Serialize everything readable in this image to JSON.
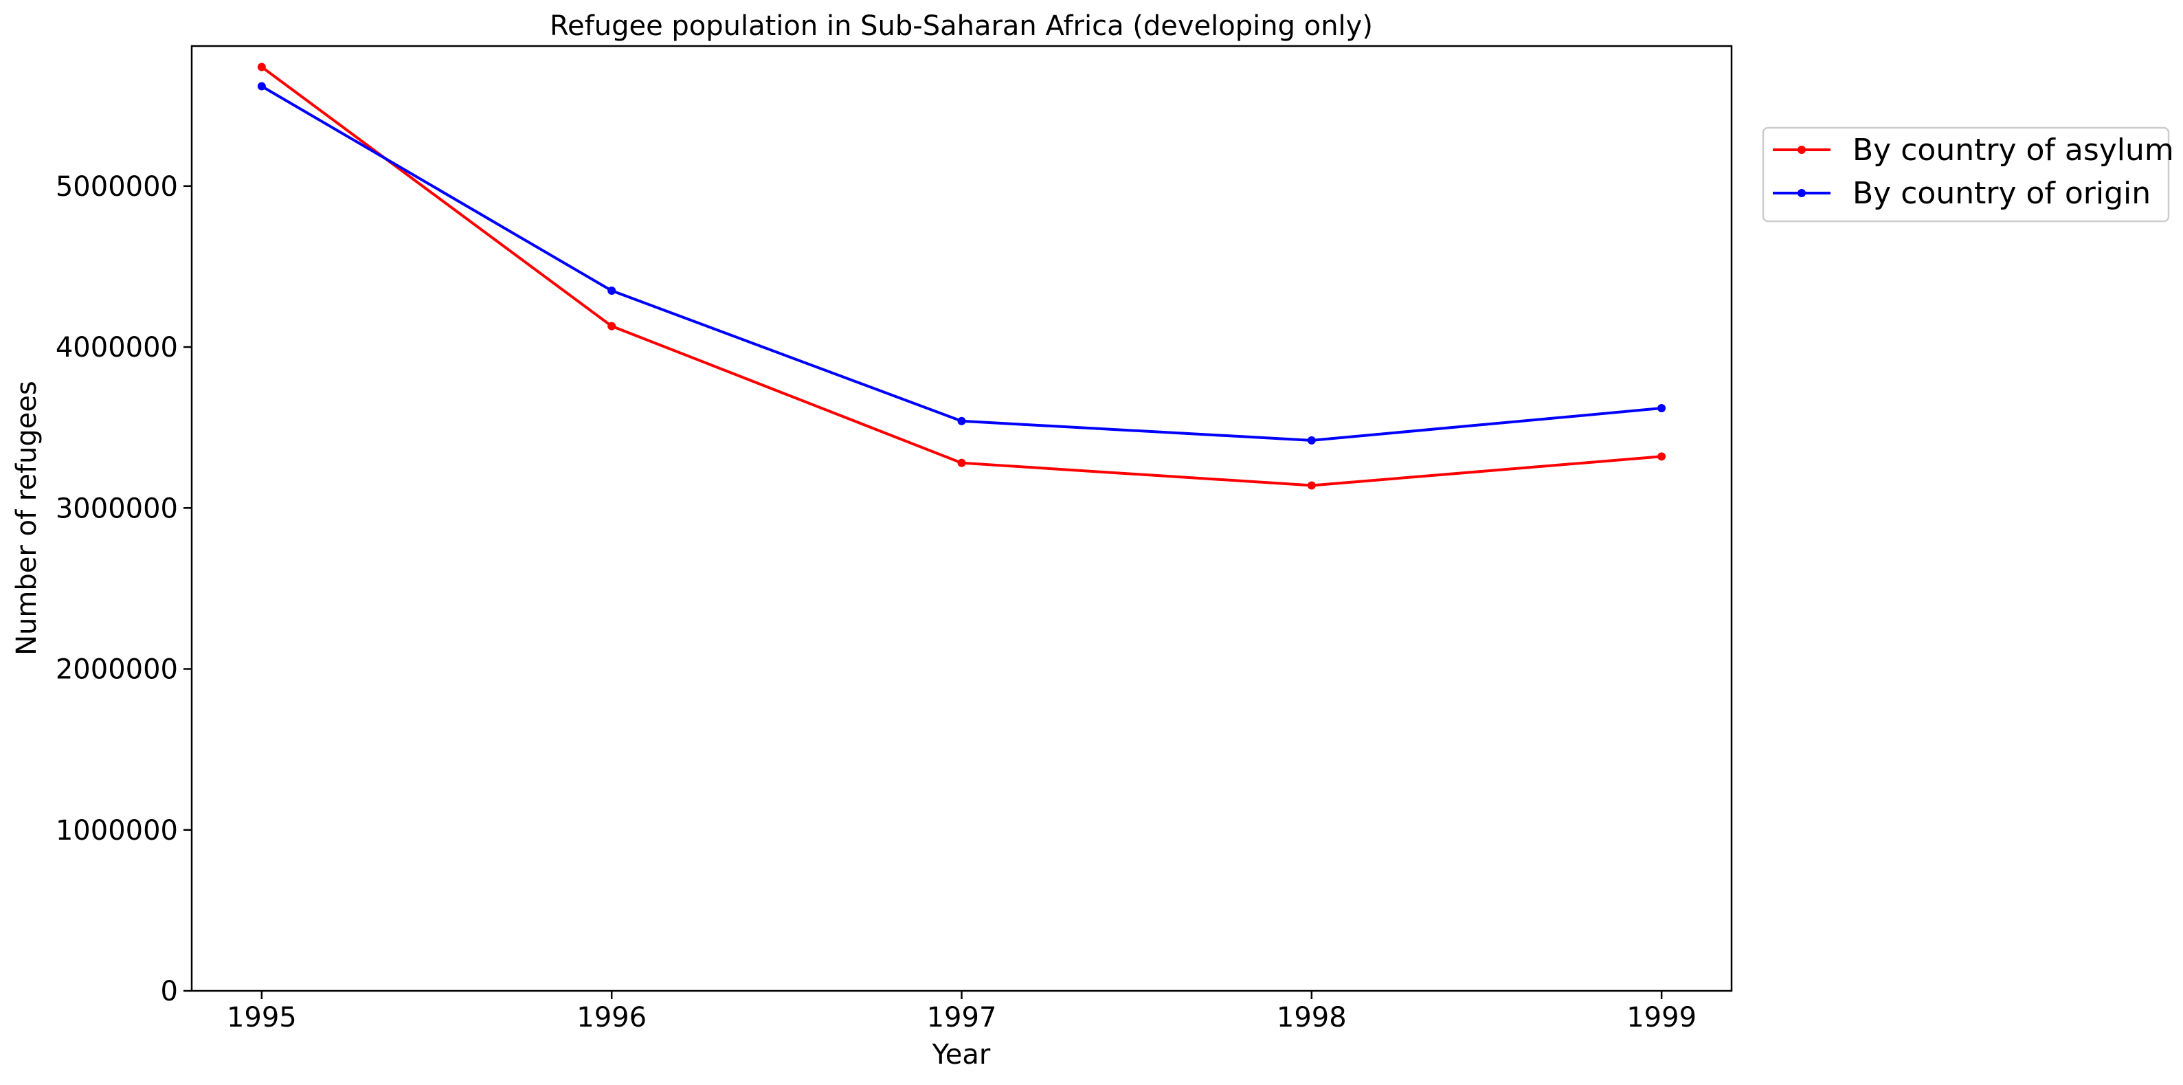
{
  "chart_data": {
    "type": "line",
    "title": "Refugee population in Sub-Saharan Africa (developing only)",
    "xlabel": "Year",
    "ylabel": "Number of refugees",
    "x": [
      1995,
      1996,
      1997,
      1998,
      1999
    ],
    "x_tick_labels": [
      "1995",
      "1996",
      "1997",
      "1998",
      "1999"
    ],
    "xlim": [
      1994.8,
      1999.2
    ],
    "ylim": [
      0,
      5870000
    ],
    "y_ticks": [
      0,
      1000000,
      2000000,
      3000000,
      4000000,
      5000000
    ],
    "y_tick_labels": [
      "0",
      "1000000",
      "2000000",
      "3000000",
      "4000000",
      "5000000"
    ],
    "grid": false,
    "legend_position": "top-right (outside plot)",
    "series": [
      {
        "name": "By country of asylum",
        "color": "#ff0000",
        "values": [
          5740000,
          4130000,
          3280000,
          3140000,
          3320000
        ]
      },
      {
        "name": "By country of origin",
        "color": "#0000ff",
        "values": [
          5620000,
          4350000,
          3540000,
          3420000,
          3620000
        ]
      }
    ]
  }
}
